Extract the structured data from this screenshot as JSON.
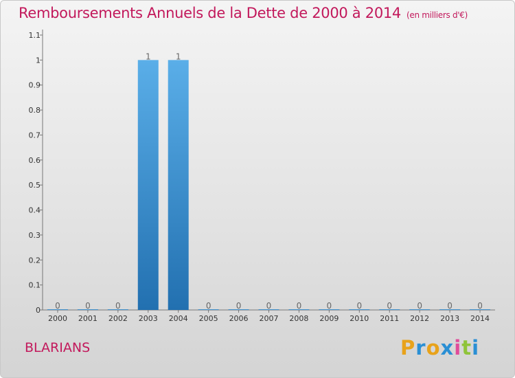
{
  "chart_data": {
    "type": "bar",
    "title": "Remboursements Annuels de la Dette de 2000 à 2014",
    "unit": "(en milliers d'€)",
    "categories": [
      "2000",
      "2001",
      "2002",
      "2003",
      "2004",
      "2005",
      "2006",
      "2007",
      "2008",
      "2009",
      "2010",
      "2011",
      "2012",
      "2013",
      "2014"
    ],
    "values": [
      0,
      0,
      0,
      1,
      1,
      0,
      0,
      0,
      0,
      0,
      0,
      0,
      0,
      0,
      0
    ],
    "data_labels": [
      "0",
      "0",
      "0",
      "1",
      "1",
      "0",
      "0",
      "0",
      "0",
      "0",
      "0",
      "0",
      "0",
      "0",
      "0"
    ],
    "ylim": [
      0,
      1.1
    ],
    "yticks": [
      0,
      0.1,
      0.2,
      0.3,
      0.4,
      0.5,
      0.6,
      0.7,
      0.8,
      0.9,
      1,
      1.1
    ],
    "ytick_labels": [
      "0",
      "0.1",
      "0.2",
      "0.3",
      "0.4",
      "0.5",
      "0.6",
      "0.7",
      "0.8",
      "0.9",
      "1",
      "1.1"
    ],
    "grid": false,
    "bar_color_top": "#5aaee8",
    "bar_color_bottom": "#2270b0"
  },
  "footer": {
    "commune": "BLARIANS",
    "logo_letters": [
      "P",
      "r",
      "o",
      "x",
      "i",
      "t",
      "i"
    ],
    "logo_colors": [
      "#e8a21a",
      "#2a8fd4",
      "#e8a21a",
      "#2a8fd4",
      "#e04c9a",
      "#8fc43a",
      "#2a8fd4"
    ]
  },
  "colors": {
    "title": "#c2185b"
  }
}
